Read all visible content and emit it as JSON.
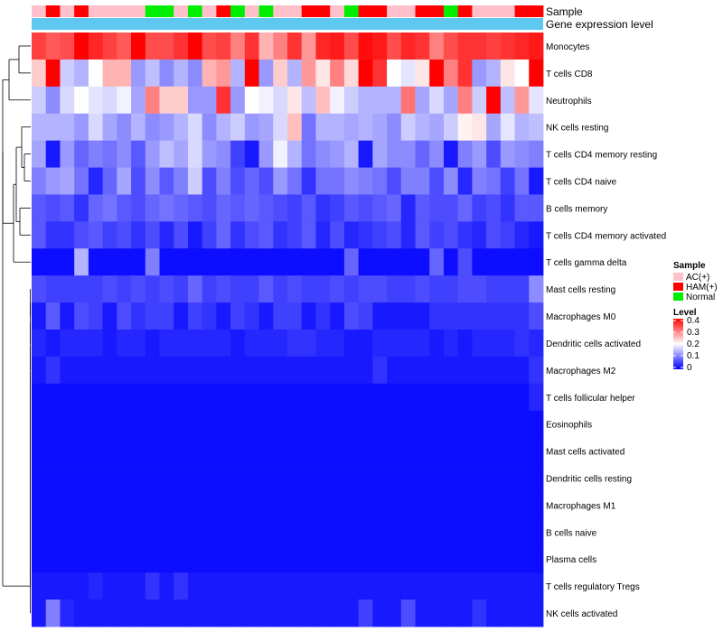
{
  "chart_data": {
    "type": "heatmap",
    "title": "",
    "annotation_track_labels": [
      "Sample",
      "Gene expression level"
    ],
    "columns": 36,
    "sample_groups": [
      "AC(+)",
      "HAM(+)",
      "AC(+)",
      "HAM(+)",
      "AC(+)",
      "AC(+)",
      "AC(+)",
      "AC(+)",
      "Normal",
      "Normal",
      "AC(+)",
      "Normal",
      "AC(+)",
      "HAM(+)",
      "Normal",
      "AC(+)",
      "Normal",
      "AC(+)",
      "AC(+)",
      "HAM(+)",
      "HAM(+)",
      "AC(+)",
      "Normal",
      "HAM(+)",
      "HAM(+)",
      "AC(+)",
      "AC(+)",
      "HAM(+)",
      "HAM(+)",
      "Normal",
      "HAM(+)",
      "AC(+)",
      "AC(+)",
      "AC(+)",
      "HAM(+)",
      "HAM(+)"
    ],
    "rows": [
      "Monocytes",
      "T cells CD8",
      "Neutrophils",
      "NK cells resting",
      "T cells CD4 memory resting",
      "T cells CD4 naive",
      "B cells memory",
      "T cells CD4 memory activated",
      "T cells gamma delta",
      "Mast cells resting",
      "Macrophages M0",
      "Dendritic cells activated",
      "Macrophages M2",
      "T cells follicular helper",
      "Eosinophils",
      "Mast cells activated",
      "Dendritic cells resting",
      "Macrophages M1",
      "B cells naive",
      "Plasma cells",
      "T cells regulatory  Tregs",
      "NK cells activated"
    ],
    "values": [
      [
        0.35,
        0.33,
        0.34,
        0.4,
        0.37,
        0.35,
        0.33,
        0.4,
        0.34,
        0.34,
        0.36,
        0.4,
        0.34,
        0.35,
        0.3,
        0.36,
        0.26,
        0.3,
        0.36,
        0.28,
        0.37,
        0.38,
        0.34,
        0.39,
        0.38,
        0.34,
        0.37,
        0.36,
        0.3,
        0.34,
        0.36,
        0.36,
        0.35,
        0.36,
        0.37,
        0.38
      ],
      [
        0.24,
        0.4,
        0.16,
        0.14,
        0.2,
        0.26,
        0.26,
        0.12,
        0.15,
        0.11,
        0.14,
        0.11,
        0.26,
        0.28,
        0.14,
        0.4,
        0.12,
        0.24,
        0.14,
        0.28,
        0.22,
        0.3,
        0.23,
        0.4,
        0.36,
        0.2,
        0.18,
        0.22,
        0.4,
        0.3,
        0.36,
        0.12,
        0.14,
        0.22,
        0.2,
        0.4
      ],
      [
        0.16,
        0.11,
        0.17,
        0.2,
        0.18,
        0.17,
        0.19,
        0.13,
        0.3,
        0.24,
        0.24,
        0.12,
        0.12,
        0.36,
        0.12,
        0.2,
        0.19,
        0.17,
        0.22,
        0.15,
        0.25,
        0.19,
        0.16,
        0.14,
        0.14,
        0.14,
        0.31,
        0.13,
        0.17,
        0.13,
        0.3,
        0.16,
        0.4,
        0.15,
        0.28,
        0.18
      ],
      [
        0.14,
        0.14,
        0.14,
        0.12,
        0.17,
        0.13,
        0.11,
        0.14,
        0.11,
        0.12,
        0.14,
        0.17,
        0.11,
        0.14,
        0.16,
        0.12,
        0.13,
        0.17,
        0.25,
        0.09,
        0.14,
        0.14,
        0.13,
        0.14,
        0.13,
        0.11,
        0.16,
        0.14,
        0.13,
        0.16,
        0.21,
        0.22,
        0.13,
        0.18,
        0.14,
        0.15
      ],
      [
        0.13,
        0.02,
        0.12,
        0.08,
        0.1,
        0.09,
        0.11,
        0.07,
        0.12,
        0.15,
        0.13,
        0.17,
        0.12,
        0.11,
        0.05,
        0.02,
        0.12,
        0.19,
        0.14,
        0.09,
        0.11,
        0.12,
        0.14,
        0.02,
        0.13,
        0.11,
        0.11,
        0.08,
        0.11,
        0.02,
        0.1,
        0.12,
        0.06,
        0.12,
        0.11,
        0.1
      ],
      [
        0.1,
        0.12,
        0.13,
        0.09,
        0.03,
        0.08,
        0.13,
        0.06,
        0.11,
        0.07,
        0.1,
        0.16,
        0.06,
        0.1,
        0.06,
        0.08,
        0.06,
        0.12,
        0.09,
        0.04,
        0.09,
        0.09,
        0.11,
        0.1,
        0.09,
        0.06,
        0.1,
        0.1,
        0.06,
        0.11,
        0.03,
        0.1,
        0.09,
        0.05,
        0.09,
        0.02
      ],
      [
        0.07,
        0.06,
        0.07,
        0.04,
        0.08,
        0.09,
        0.07,
        0.06,
        0.08,
        0.09,
        0.08,
        0.07,
        0.06,
        0.08,
        0.07,
        0.08,
        0.07,
        0.06,
        0.05,
        0.07,
        0.04,
        0.05,
        0.07,
        0.06,
        0.07,
        0.08,
        0.03,
        0.07,
        0.06,
        0.06,
        0.08,
        0.05,
        0.06,
        0.04,
        0.07,
        0.07
      ],
      [
        0.07,
        0.04,
        0.04,
        0.06,
        0.07,
        0.05,
        0.06,
        0.04,
        0.06,
        0.03,
        0.06,
        0.02,
        0.05,
        0.08,
        0.04,
        0.06,
        0.07,
        0.04,
        0.05,
        0.07,
        0.03,
        0.06,
        0.03,
        0.04,
        0.05,
        0.06,
        0.03,
        0.07,
        0.05,
        0.06,
        0.04,
        0.03,
        0.06,
        0.05,
        0.03,
        0.02
      ],
      [
        0.01,
        0.01,
        0.01,
        0.14,
        0.01,
        0.01,
        0.01,
        0.01,
        0.1,
        0.01,
        0.01,
        0.01,
        0.01,
        0.01,
        0.01,
        0.01,
        0.01,
        0.01,
        0.01,
        0.01,
        0.01,
        0.01,
        0.08,
        0.01,
        0.01,
        0.01,
        0.01,
        0.01,
        0.08,
        0.01,
        0.06,
        0.01,
        0.01,
        0.01,
        0.01,
        0.01
      ],
      [
        0.06,
        0.05,
        0.05,
        0.05,
        0.05,
        0.06,
        0.05,
        0.06,
        0.05,
        0.06,
        0.05,
        0.08,
        0.05,
        0.06,
        0.05,
        0.05,
        0.07,
        0.05,
        0.06,
        0.05,
        0.05,
        0.06,
        0.05,
        0.06,
        0.06,
        0.05,
        0.05,
        0.06,
        0.05,
        0.05,
        0.06,
        0.06,
        0.05,
        0.05,
        0.05,
        0.11
      ],
      [
        0.02,
        0.07,
        0.02,
        0.06,
        0.05,
        0.02,
        0.06,
        0.04,
        0.05,
        0.05,
        0.02,
        0.05,
        0.04,
        0.02,
        0.05,
        0.04,
        0.02,
        0.05,
        0.05,
        0.02,
        0.04,
        0.02,
        0.06,
        0.05,
        0.02,
        0.02,
        0.02,
        0.02,
        0.04,
        0.04,
        0.04,
        0.04,
        0.04,
        0.04,
        0.04,
        0.06
      ],
      [
        0.03,
        0.02,
        0.03,
        0.03,
        0.03,
        0.02,
        0.03,
        0.03,
        0.02,
        0.03,
        0.03,
        0.03,
        0.03,
        0.03,
        0.02,
        0.03,
        0.03,
        0.03,
        0.04,
        0.04,
        0.03,
        0.03,
        0.02,
        0.02,
        0.03,
        0.03,
        0.03,
        0.03,
        0.02,
        0.03,
        0.02,
        0.03,
        0.03,
        0.03,
        0.04,
        0.03
      ],
      [
        0.02,
        0.04,
        0.02,
        0.02,
        0.02,
        0.02,
        0.02,
        0.02,
        0.02,
        0.02,
        0.02,
        0.02,
        0.02,
        0.02,
        0.02,
        0.02,
        0.02,
        0.02,
        0.02,
        0.02,
        0.02,
        0.02,
        0.02,
        0.02,
        0.04,
        0.02,
        0.02,
        0.02,
        0.02,
        0.02,
        0.02,
        0.02,
        0.02,
        0.02,
        0.02,
        0.04
      ],
      [
        0.01,
        0.01,
        0.01,
        0.01,
        0.01,
        0.01,
        0.01,
        0.01,
        0.01,
        0.01,
        0.01,
        0.01,
        0.01,
        0.01,
        0.01,
        0.01,
        0.01,
        0.01,
        0.01,
        0.01,
        0.01,
        0.01,
        0.01,
        0.01,
        0.01,
        0.01,
        0.01,
        0.01,
        0.01,
        0.01,
        0.01,
        0.01,
        0.01,
        0.01,
        0.01,
        0.03
      ],
      [
        0.01,
        0.01,
        0.01,
        0.01,
        0.01,
        0.01,
        0.01,
        0.01,
        0.01,
        0.01,
        0.01,
        0.01,
        0.01,
        0.01,
        0.01,
        0.01,
        0.01,
        0.01,
        0.01,
        0.01,
        0.01,
        0.01,
        0.01,
        0.01,
        0.01,
        0.01,
        0.01,
        0.01,
        0.01,
        0.01,
        0.01,
        0.01,
        0.01,
        0.01,
        0.01,
        0.01
      ],
      [
        0.01,
        0.01,
        0.01,
        0.01,
        0.01,
        0.01,
        0.01,
        0.01,
        0.01,
        0.01,
        0.01,
        0.01,
        0.01,
        0.01,
        0.01,
        0.01,
        0.01,
        0.01,
        0.01,
        0.01,
        0.01,
        0.01,
        0.01,
        0.01,
        0.01,
        0.01,
        0.01,
        0.01,
        0.01,
        0.01,
        0.01,
        0.01,
        0.01,
        0.01,
        0.01,
        0.01
      ],
      [
        0.01,
        0.01,
        0.01,
        0.01,
        0.01,
        0.01,
        0.01,
        0.01,
        0.01,
        0.01,
        0.01,
        0.01,
        0.01,
        0.01,
        0.01,
        0.01,
        0.01,
        0.01,
        0.01,
        0.01,
        0.01,
        0.01,
        0.01,
        0.01,
        0.01,
        0.01,
        0.01,
        0.01,
        0.01,
        0.01,
        0.01,
        0.01,
        0.01,
        0.01,
        0.01,
        0.01
      ],
      [
        0.01,
        0.01,
        0.01,
        0.01,
        0.01,
        0.01,
        0.01,
        0.01,
        0.01,
        0.01,
        0.01,
        0.01,
        0.01,
        0.01,
        0.01,
        0.01,
        0.01,
        0.01,
        0.01,
        0.01,
        0.01,
        0.01,
        0.01,
        0.01,
        0.01,
        0.01,
        0.01,
        0.01,
        0.01,
        0.01,
        0.01,
        0.01,
        0.01,
        0.01,
        0.01,
        0.01
      ],
      [
        0.01,
        0.01,
        0.01,
        0.01,
        0.01,
        0.01,
        0.01,
        0.01,
        0.01,
        0.01,
        0.01,
        0.01,
        0.01,
        0.01,
        0.01,
        0.01,
        0.01,
        0.01,
        0.01,
        0.01,
        0.01,
        0.01,
        0.01,
        0.01,
        0.01,
        0.01,
        0.01,
        0.01,
        0.01,
        0.01,
        0.01,
        0.01,
        0.01,
        0.01,
        0.01,
        0.01
      ],
      [
        0.01,
        0.01,
        0.01,
        0.01,
        0.01,
        0.01,
        0.01,
        0.01,
        0.01,
        0.01,
        0.01,
        0.01,
        0.01,
        0.01,
        0.01,
        0.01,
        0.01,
        0.01,
        0.01,
        0.01,
        0.01,
        0.01,
        0.01,
        0.01,
        0.01,
        0.01,
        0.01,
        0.01,
        0.01,
        0.01,
        0.01,
        0.01,
        0.01,
        0.01,
        0.01,
        0.01
      ],
      [
        0.02,
        0.02,
        0.02,
        0.02,
        0.03,
        0.02,
        0.02,
        0.02,
        0.04,
        0.02,
        0.04,
        0.02,
        0.02,
        0.02,
        0.02,
        0.02,
        0.02,
        0.02,
        0.02,
        0.02,
        0.02,
        0.02,
        0.02,
        0.02,
        0.02,
        0.02,
        0.02,
        0.02,
        0.02,
        0.02,
        0.02,
        0.02,
        0.02,
        0.02,
        0.02,
        0.02
      ],
      [
        0.02,
        0.1,
        0.03,
        0.02,
        0.02,
        0.02,
        0.02,
        0.02,
        0.02,
        0.02,
        0.02,
        0.02,
        0.02,
        0.02,
        0.02,
        0.02,
        0.02,
        0.02,
        0.02,
        0.02,
        0.02,
        0.02,
        0.02,
        0.05,
        0.02,
        0.02,
        0.06,
        0.02,
        0.02,
        0.02,
        0.02,
        0.04,
        0.02,
        0.02,
        0.02,
        0.02
      ]
    ],
    "color_scale": {
      "min": 0,
      "mid": 0.2,
      "max": 0.4,
      "low_color": "#0000ff",
      "mid_color": "#ffffff",
      "high_color": "#ff0000"
    },
    "legend_sample": {
      "title": "Sample",
      "items": [
        {
          "label": "AC(+)",
          "color": "#ffc0cb"
        },
        {
          "label": "HAM(+)",
          "color": "#ff0000"
        },
        {
          "label": "Normal",
          "color": "#00ee00"
        }
      ]
    },
    "legend_level": {
      "title": "Level",
      "ticks": [
        "0.4",
        "0.3",
        "0.2",
        "0.1",
        "0"
      ]
    },
    "expression_track_color": "#5fc8f0"
  }
}
